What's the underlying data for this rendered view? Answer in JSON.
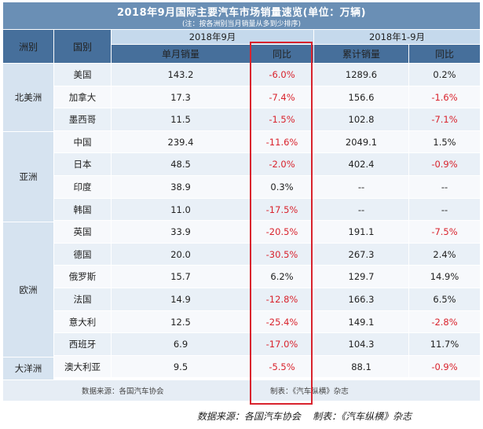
{
  "title": "2018年9月国际主要汽车市场销量速览(单位：万辆)",
  "subtitle": "(注：按各洲别当月销量从多到少排序)",
  "headers": {
    "continent": "洲别",
    "country": "国别",
    "period_month": "2018年9月",
    "period_ytd": "2018年1-9月",
    "monthly_sales": "单月销量",
    "yoy": "同比",
    "cumulative_sales": "累计销量",
    "yoy_ytd": "同比"
  },
  "continents": [
    {
      "name": "北美洲"
    },
    {
      "name": "亚洲"
    },
    {
      "name": "欧洲"
    },
    {
      "name": "大洋洲"
    }
  ],
  "rows": [
    {
      "country": "美国",
      "month": "143.2",
      "month_yoy": "-6.0%",
      "ytd": "1289.6",
      "ytd_yoy": "0.2%"
    },
    {
      "country": "加拿大",
      "month": "17.3",
      "month_yoy": "-7.4%",
      "ytd": "156.6",
      "ytd_yoy": "-1.6%"
    },
    {
      "country": "墨西哥",
      "month": "11.5",
      "month_yoy": "-1.5%",
      "ytd": "102.8",
      "ytd_yoy": "-7.1%"
    },
    {
      "country": "中国",
      "month": "239.4",
      "month_yoy": "-11.6%",
      "ytd": "2049.1",
      "ytd_yoy": "1.5%"
    },
    {
      "country": "日本",
      "month": "48.5",
      "month_yoy": "-2.0%",
      "ytd": "402.4",
      "ytd_yoy": "-0.9%"
    },
    {
      "country": "印度",
      "month": "38.9",
      "month_yoy": "0.3%",
      "ytd": "--",
      "ytd_yoy": "--"
    },
    {
      "country": "韩国",
      "month": "11.0",
      "month_yoy": "-17.5%",
      "ytd": "--",
      "ytd_yoy": "--"
    },
    {
      "country": "英国",
      "month": "33.9",
      "month_yoy": "-20.5%",
      "ytd": "191.1",
      "ytd_yoy": "-7.5%"
    },
    {
      "country": "德国",
      "month": "20.0",
      "month_yoy": "-30.5%",
      "ytd": "267.3",
      "ytd_yoy": "2.4%"
    },
    {
      "country": "俄罗斯",
      "month": "15.7",
      "month_yoy": "6.2%",
      "ytd": "129.7",
      "ytd_yoy": "14.9%"
    },
    {
      "country": "法国",
      "month": "14.9",
      "month_yoy": "-12.8%",
      "ytd": "166.3",
      "ytd_yoy": "6.5%"
    },
    {
      "country": "意大利",
      "month": "12.5",
      "month_yoy": "-25.4%",
      "ytd": "149.1",
      "ytd_yoy": "-2.8%"
    },
    {
      "country": "西班牙",
      "month": "6.9",
      "month_yoy": "-17.0%",
      "ytd": "104.3",
      "ytd_yoy": "11.7%"
    },
    {
      "country": "澳大利亚",
      "month": "9.5",
      "month_yoy": "-5.5%",
      "ytd": "88.1",
      "ytd_yoy": "-0.9%"
    }
  ],
  "footer": {
    "source": "数据来源：各国汽车协会",
    "made_by": "制表：《汽车纵横》杂志"
  },
  "caption": "数据来源：各国汽车协会    制表：《汽车纵横》杂志",
  "colors": {
    "negative": "#d9232d",
    "highlight_box": "#d9232d",
    "header_dark": "#466f9b",
    "header_light": "#c5d9ec"
  }
}
